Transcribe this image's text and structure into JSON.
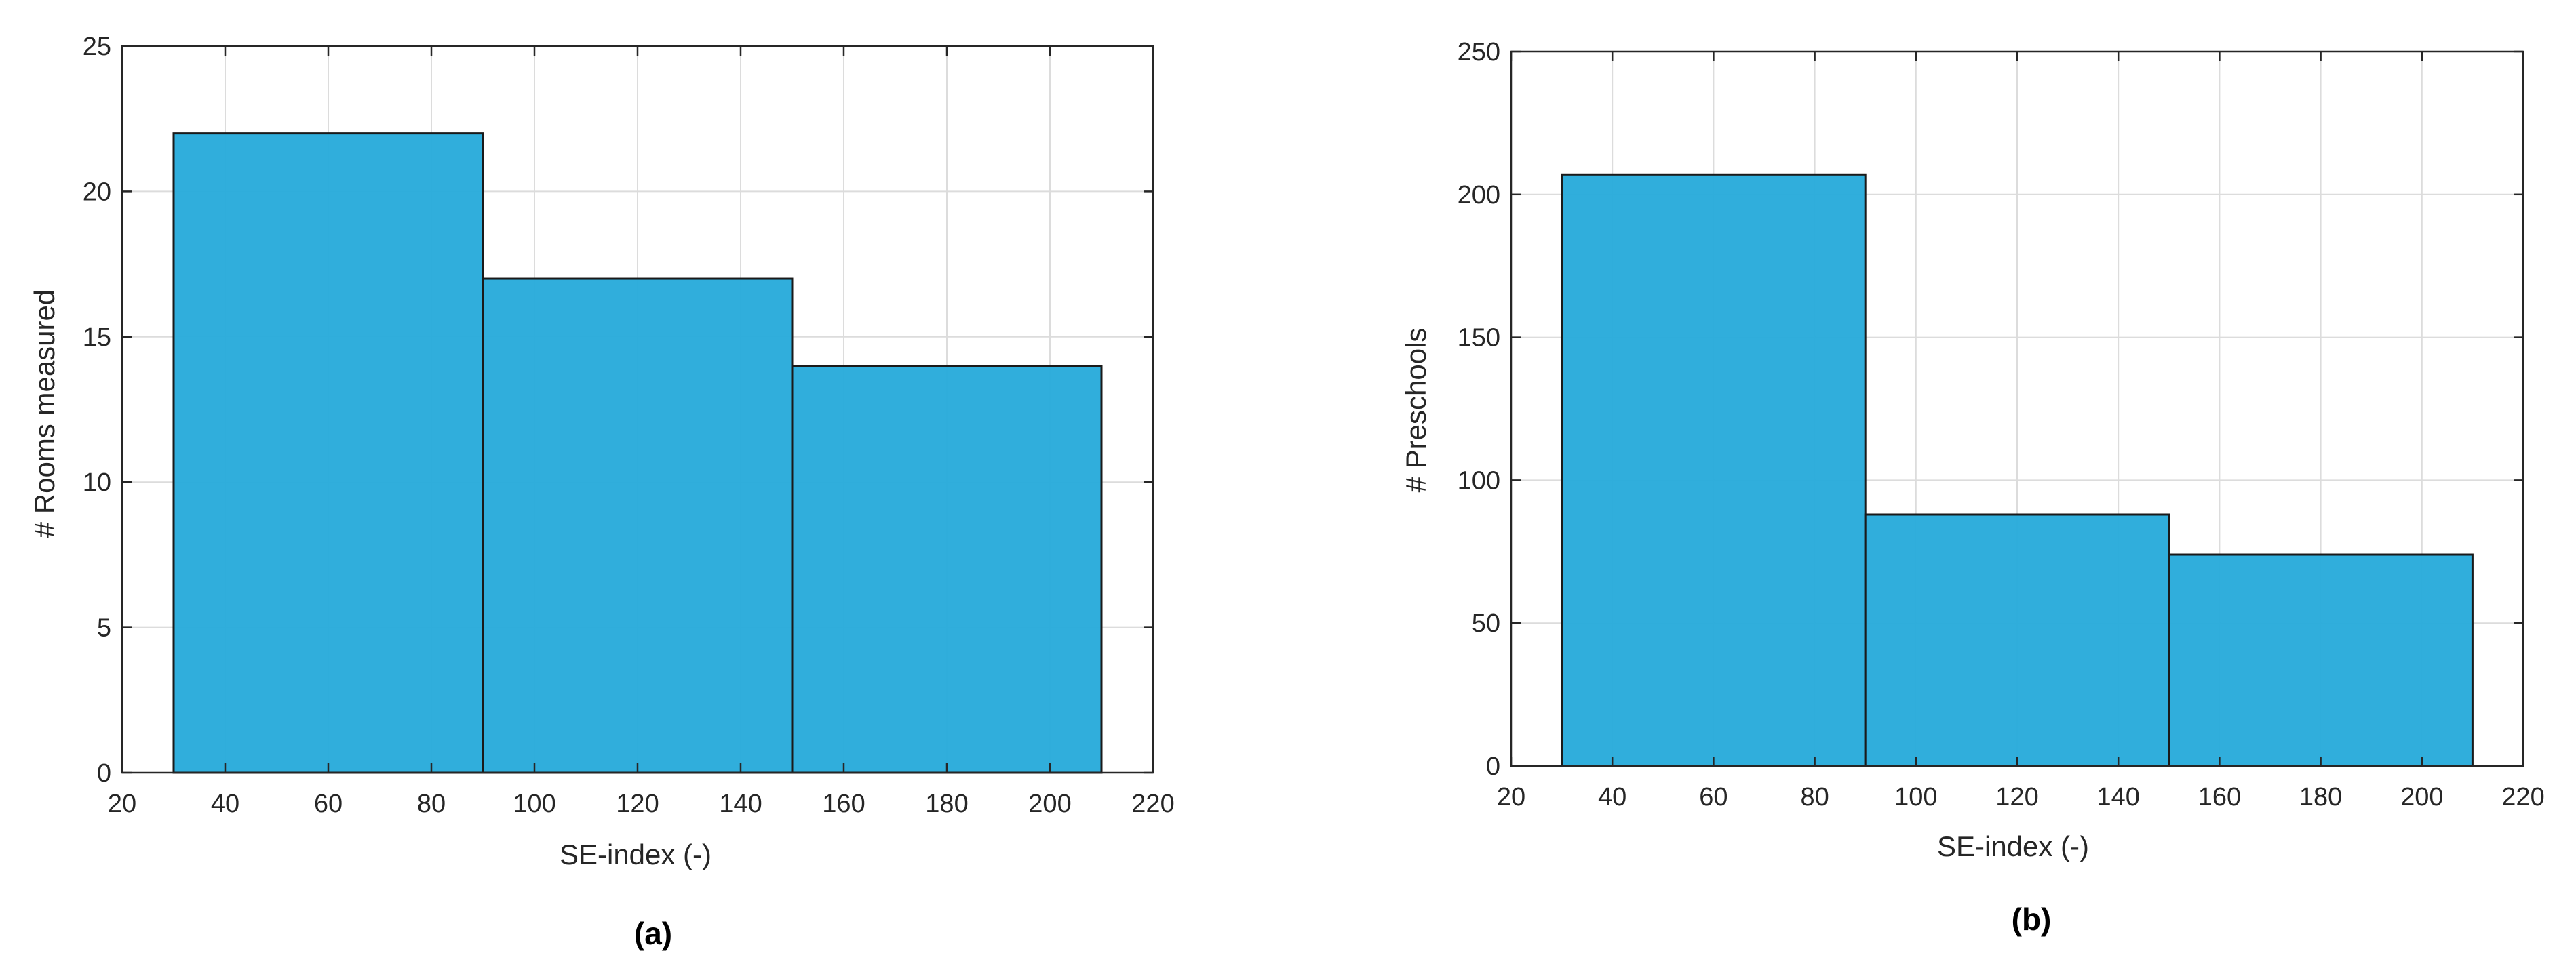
{
  "colors": {
    "bar_fill": "#29abdb",
    "bar_edge": "#1a1a1a",
    "grid": "#dcdcdc",
    "axis": "#262626"
  },
  "chart_data": [
    {
      "type": "bar",
      "panel_label": "(a)",
      "xlabel": "SE-index (-)",
      "ylabel": "# Rooms measured",
      "xlim": [
        20,
        220
      ],
      "ylim": [
        0,
        25
      ],
      "xticks": [
        20,
        40,
        60,
        80,
        100,
        120,
        140,
        160,
        180,
        200,
        220
      ],
      "yticks": [
        0,
        5,
        10,
        15,
        20,
        25
      ],
      "bins": [
        {
          "x0": 30,
          "x1": 90,
          "value": 22
        },
        {
          "x0": 90,
          "x1": 150,
          "value": 17
        },
        {
          "x0": 150,
          "x1": 210,
          "value": 14
        }
      ],
      "grid": true
    },
    {
      "type": "bar",
      "panel_label": "(b)",
      "xlabel": "SE-index (-)",
      "ylabel": "# Preschools",
      "xlim": [
        20,
        220
      ],
      "ylim": [
        0,
        250
      ],
      "xticks": [
        20,
        40,
        60,
        80,
        100,
        120,
        140,
        160,
        180,
        200,
        220
      ],
      "yticks": [
        0,
        50,
        100,
        150,
        200,
        250
      ],
      "bins": [
        {
          "x0": 30,
          "x1": 90,
          "value": 207
        },
        {
          "x0": 90,
          "x1": 150,
          "value": 88
        },
        {
          "x0": 150,
          "x1": 210,
          "value": 74
        }
      ],
      "grid": true
    }
  ]
}
